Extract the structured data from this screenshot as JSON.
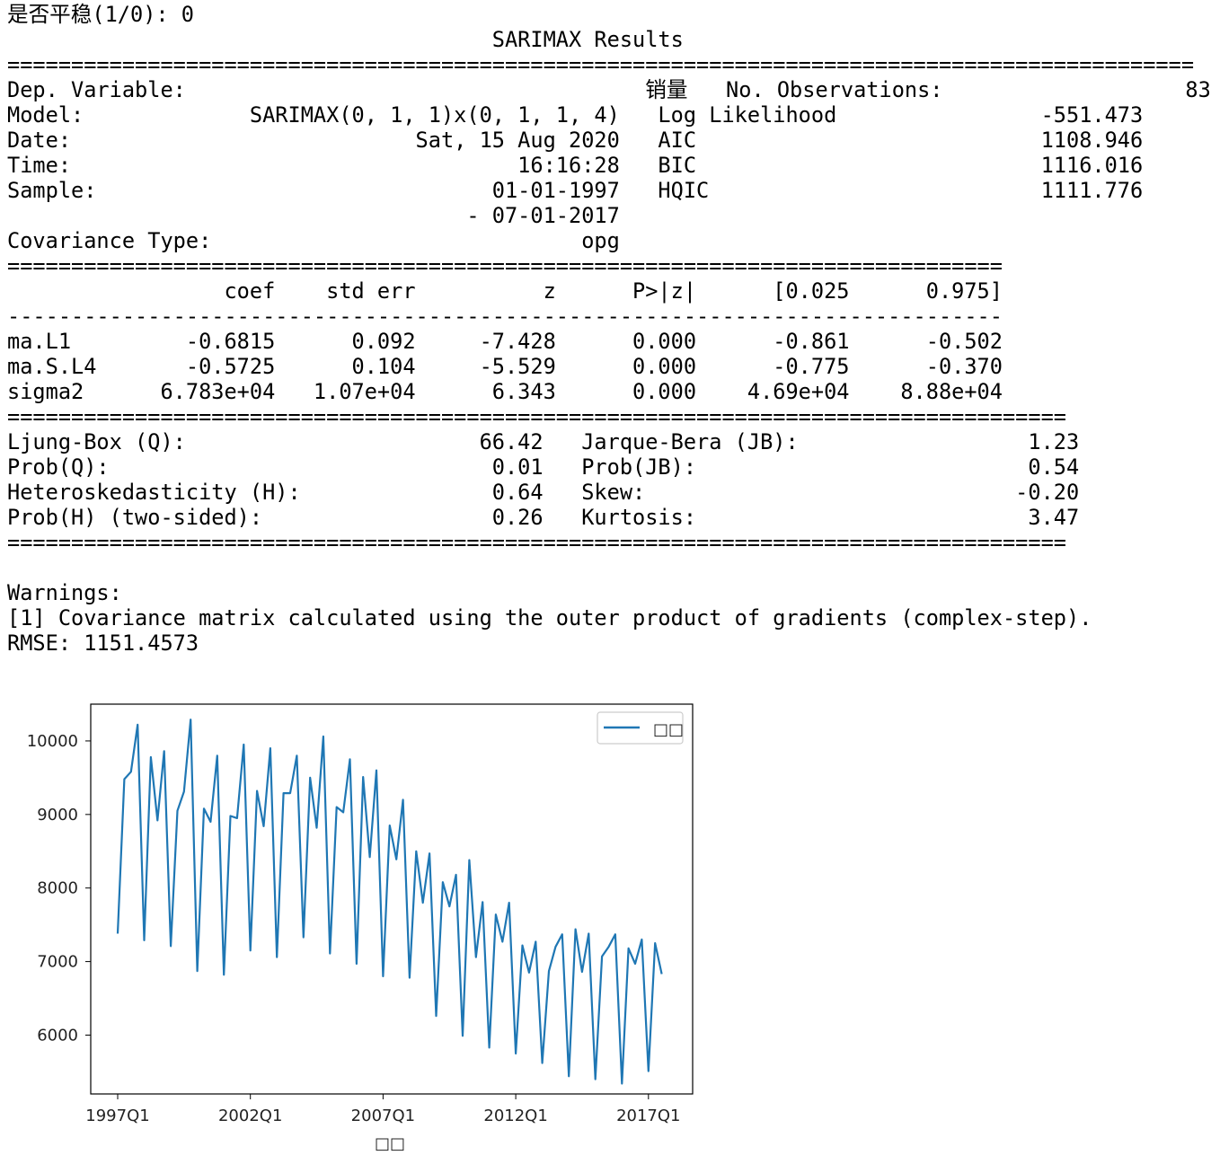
{
  "console": {
    "lines": [
      "是否平稳(1/0): 0",
      "                                      SARIMAX Results",
      "=============================================================================================",
      "Dep. Variable:                                    销量   No. Observations:                   83",
      "Model:             SARIMAX(0, 1, 1)x(0, 1, 1, 4)   Log Likelihood                -551.473",
      "Date:                           Sat, 15 Aug 2020   AIC                           1108.946",
      "Time:                                   16:16:28   BIC                           1116.016",
      "Sample:                               01-01-1997   HQIC                          1111.776",
      "                                    - 07-01-2017",
      "Covariance Type:                             opg",
      "==============================================================================",
      "                 coef    std err          z      P>|z|      [0.025      0.975]",
      "------------------------------------------------------------------------------",
      "ma.L1         -0.6815      0.092     -7.428      0.000      -0.861      -0.502",
      "ma.S.L4       -0.5725      0.104     -5.529      0.000      -0.775      -0.370",
      "sigma2      6.783e+04   1.07e+04      6.343      0.000    4.69e+04    8.88e+04",
      "===================================================================================",
      "Ljung-Box (Q):                       66.42   Jarque-Bera (JB):                  1.23",
      "Prob(Q):                              0.01   Prob(JB):                          0.54",
      "Heteroskedasticity (H):               0.64   Skew:                             -0.20",
      "Prob(H) (two-sided):                  0.26   Kurtosis:                          3.47",
      "===================================================================================",
      "",
      "Warnings:",
      "[1] Covariance matrix calculated using the outer product of gradients (complex-step).",
      "RMSE: 1151.4573"
    ]
  },
  "chart_data": {
    "type": "line",
    "title": "",
    "xlabel": "□□",
    "ylabel": "",
    "x_start": "1997Q1",
    "x_ticks": [
      "1997Q1",
      "2002Q1",
      "2007Q1",
      "2012Q1",
      "2017Q1"
    ],
    "y_ticks": [
      6000,
      7000,
      8000,
      9000,
      10000
    ],
    "ylim": [
      5200,
      10500
    ],
    "grid": false,
    "legend_position": "top-right",
    "series": [
      {
        "name": "□□",
        "color": "#1f77b4",
        "values": [
          7380,
          9480,
          9580,
          10220,
          7290,
          9780,
          8920,
          9860,
          7210,
          9050,
          9310,
          10290,
          6870,
          9080,
          8900,
          9800,
          6820,
          8980,
          8950,
          9950,
          7150,
          9320,
          8840,
          9900,
          7060,
          9290,
          9290,
          9800,
          7330,
          9500,
          8820,
          10060,
          7110,
          9100,
          9030,
          9750,
          6970,
          9510,
          8420,
          9600,
          6800,
          8850,
          8390,
          9200,
          6780,
          8500,
          7800,
          8470,
          6260,
          8080,
          7750,
          8180,
          5990,
          8380,
          7060,
          7810,
          5830,
          7640,
          7270,
          7800,
          5750,
          7220,
          6850,
          7270,
          5620,
          6870,
          7200,
          7370,
          5440,
          7440,
          6860,
          7380,
          5400,
          7070,
          7200,
          7370,
          5340,
          7180,
          6970,
          7300,
          5510,
          7250,
          6830
        ]
      }
    ]
  }
}
